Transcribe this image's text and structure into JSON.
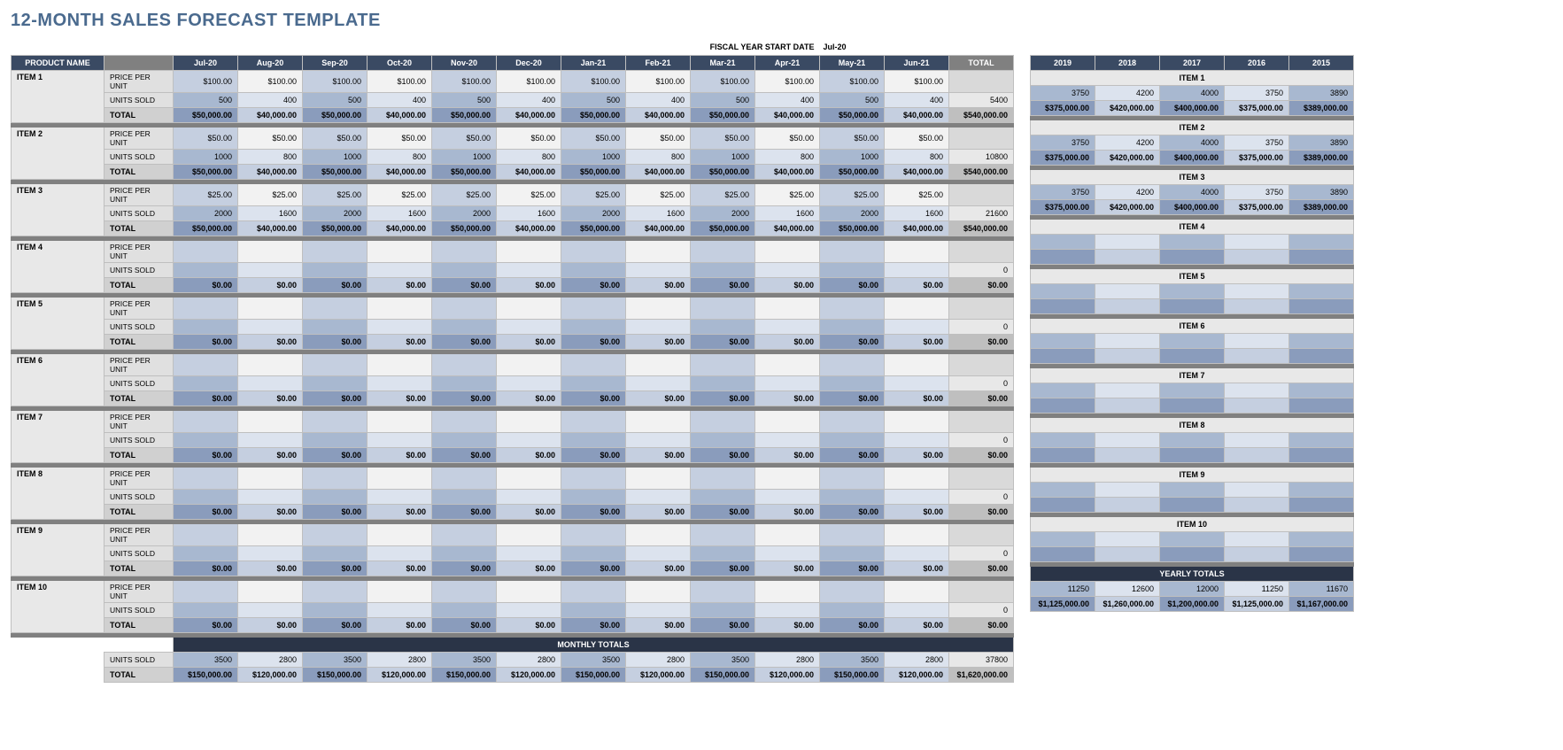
{
  "title": "12-MONTH SALES FORECAST TEMPLATE",
  "fiscal_label": "FISCAL YEAR START DATE",
  "fiscal_value": "Jul-20",
  "headers": {
    "product_name": "PRODUCT NAME",
    "months": [
      "Jul-20",
      "Aug-20",
      "Sep-20",
      "Oct-20",
      "Nov-20",
      "Dec-20",
      "Jan-21",
      "Feb-21",
      "Mar-21",
      "Apr-21",
      "May-21",
      "Jun-21"
    ],
    "total": "TOTAL",
    "years": [
      "2019",
      "2018",
      "2017",
      "2016",
      "2015"
    ],
    "monthly_totals": "MONTHLY TOTALS",
    "yearly_totals": "YEARLY TOTALS"
  },
  "row_labels": {
    "ppu": "PRICE PER UNIT",
    "units": "UNITS SOLD",
    "total": "TOTAL"
  },
  "items": [
    {
      "name": "ITEM 1",
      "ppu": [
        "$100.00",
        "$100.00",
        "$100.00",
        "$100.00",
        "$100.00",
        "$100.00",
        "$100.00",
        "$100.00",
        "$100.00",
        "$100.00",
        "$100.00",
        "$100.00"
      ],
      "ppu_total": "",
      "units": [
        "500",
        "400",
        "500",
        "400",
        "500",
        "400",
        "500",
        "400",
        "500",
        "400",
        "500",
        "400"
      ],
      "units_total": "5400",
      "totals": [
        "$50,000.00",
        "$40,000.00",
        "$50,000.00",
        "$40,000.00",
        "$50,000.00",
        "$40,000.00",
        "$50,000.00",
        "$40,000.00",
        "$50,000.00",
        "$40,000.00",
        "$50,000.00",
        "$40,000.00"
      ],
      "grand_total": "$540,000.00",
      "yr_units": [
        "3750",
        "4200",
        "4000",
        "3750",
        "3890"
      ],
      "yr_totals": [
        "$375,000.00",
        "$420,000.00",
        "$400,000.00",
        "$375,000.00",
        "$389,000.00"
      ]
    },
    {
      "name": "ITEM 2",
      "ppu": [
        "$50.00",
        "$50.00",
        "$50.00",
        "$50.00",
        "$50.00",
        "$50.00",
        "$50.00",
        "$50.00",
        "$50.00",
        "$50.00",
        "$50.00",
        "$50.00"
      ],
      "ppu_total": "",
      "units": [
        "1000",
        "800",
        "1000",
        "800",
        "1000",
        "800",
        "1000",
        "800",
        "1000",
        "800",
        "1000",
        "800"
      ],
      "units_total": "10800",
      "totals": [
        "$50,000.00",
        "$40,000.00",
        "$50,000.00",
        "$40,000.00",
        "$50,000.00",
        "$40,000.00",
        "$50,000.00",
        "$40,000.00",
        "$50,000.00",
        "$40,000.00",
        "$50,000.00",
        "$40,000.00"
      ],
      "grand_total": "$540,000.00",
      "yr_units": [
        "3750",
        "4200",
        "4000",
        "3750",
        "3890"
      ],
      "yr_totals": [
        "$375,000.00",
        "$420,000.00",
        "$400,000.00",
        "$375,000.00",
        "$389,000.00"
      ]
    },
    {
      "name": "ITEM 3",
      "ppu": [
        "$25.00",
        "$25.00",
        "$25.00",
        "$25.00",
        "$25.00",
        "$25.00",
        "$25.00",
        "$25.00",
        "$25.00",
        "$25.00",
        "$25.00",
        "$25.00"
      ],
      "ppu_total": "",
      "units": [
        "2000",
        "1600",
        "2000",
        "1600",
        "2000",
        "1600",
        "2000",
        "1600",
        "2000",
        "1600",
        "2000",
        "1600"
      ],
      "units_total": "21600",
      "totals": [
        "$50,000.00",
        "$40,000.00",
        "$50,000.00",
        "$40,000.00",
        "$50,000.00",
        "$40,000.00",
        "$50,000.00",
        "$40,000.00",
        "$50,000.00",
        "$40,000.00",
        "$50,000.00",
        "$40,000.00"
      ],
      "grand_total": "$540,000.00",
      "yr_units": [
        "3750",
        "4200",
        "4000",
        "3750",
        "3890"
      ],
      "yr_totals": [
        "$375,000.00",
        "$420,000.00",
        "$400,000.00",
        "$375,000.00",
        "$389,000.00"
      ]
    },
    {
      "name": "ITEM 4",
      "ppu": [
        "",
        "",
        "",
        "",
        "",
        "",
        "",
        "",
        "",
        "",
        "",
        ""
      ],
      "ppu_total": "",
      "units": [
        "",
        "",
        "",
        "",
        "",
        "",
        "",
        "",
        "",
        "",
        "",
        ""
      ],
      "units_total": "0",
      "totals": [
        "$0.00",
        "$0.00",
        "$0.00",
        "$0.00",
        "$0.00",
        "$0.00",
        "$0.00",
        "$0.00",
        "$0.00",
        "$0.00",
        "$0.00",
        "$0.00"
      ],
      "grand_total": "$0.00",
      "yr_units": [
        "",
        "",
        "",
        "",
        ""
      ],
      "yr_totals": [
        "",
        "",
        "",
        "",
        ""
      ]
    },
    {
      "name": "ITEM 5",
      "ppu": [
        "",
        "",
        "",
        "",
        "",
        "",
        "",
        "",
        "",
        "",
        "",
        ""
      ],
      "ppu_total": "",
      "units": [
        "",
        "",
        "",
        "",
        "",
        "",
        "",
        "",
        "",
        "",
        "",
        ""
      ],
      "units_total": "0",
      "totals": [
        "$0.00",
        "$0.00",
        "$0.00",
        "$0.00",
        "$0.00",
        "$0.00",
        "$0.00",
        "$0.00",
        "$0.00",
        "$0.00",
        "$0.00",
        "$0.00"
      ],
      "grand_total": "$0.00",
      "yr_units": [
        "",
        "",
        "",
        "",
        ""
      ],
      "yr_totals": [
        "",
        "",
        "",
        "",
        ""
      ]
    },
    {
      "name": "ITEM 6",
      "ppu": [
        "",
        "",
        "",
        "",
        "",
        "",
        "",
        "",
        "",
        "",
        "",
        ""
      ],
      "ppu_total": "",
      "units": [
        "",
        "",
        "",
        "",
        "",
        "",
        "",
        "",
        "",
        "",
        "",
        ""
      ],
      "units_total": "0",
      "totals": [
        "$0.00",
        "$0.00",
        "$0.00",
        "$0.00",
        "$0.00",
        "$0.00",
        "$0.00",
        "$0.00",
        "$0.00",
        "$0.00",
        "$0.00",
        "$0.00"
      ],
      "grand_total": "$0.00",
      "yr_units": [
        "",
        "",
        "",
        "",
        ""
      ],
      "yr_totals": [
        "",
        "",
        "",
        "",
        ""
      ]
    },
    {
      "name": "ITEM 7",
      "ppu": [
        "",
        "",
        "",
        "",
        "",
        "",
        "",
        "",
        "",
        "",
        "",
        ""
      ],
      "ppu_total": "",
      "units": [
        "",
        "",
        "",
        "",
        "",
        "",
        "",
        "",
        "",
        "",
        "",
        ""
      ],
      "units_total": "0",
      "totals": [
        "$0.00",
        "$0.00",
        "$0.00",
        "$0.00",
        "$0.00",
        "$0.00",
        "$0.00",
        "$0.00",
        "$0.00",
        "$0.00",
        "$0.00",
        "$0.00"
      ],
      "grand_total": "$0.00",
      "yr_units": [
        "",
        "",
        "",
        "",
        ""
      ],
      "yr_totals": [
        "",
        "",
        "",
        "",
        ""
      ]
    },
    {
      "name": "ITEM 8",
      "ppu": [
        "",
        "",
        "",
        "",
        "",
        "",
        "",
        "",
        "",
        "",
        "",
        ""
      ],
      "ppu_total": "",
      "units": [
        "",
        "",
        "",
        "",
        "",
        "",
        "",
        "",
        "",
        "",
        "",
        ""
      ],
      "units_total": "0",
      "totals": [
        "$0.00",
        "$0.00",
        "$0.00",
        "$0.00",
        "$0.00",
        "$0.00",
        "$0.00",
        "$0.00",
        "$0.00",
        "$0.00",
        "$0.00",
        "$0.00"
      ],
      "grand_total": "$0.00",
      "yr_units": [
        "",
        "",
        "",
        "",
        ""
      ],
      "yr_totals": [
        "",
        "",
        "",
        "",
        ""
      ]
    },
    {
      "name": "ITEM 9",
      "ppu": [
        "",
        "",
        "",
        "",
        "",
        "",
        "",
        "",
        "",
        "",
        "",
        ""
      ],
      "ppu_total": "",
      "units": [
        "",
        "",
        "",
        "",
        "",
        "",
        "",
        "",
        "",
        "",
        "",
        ""
      ],
      "units_total": "0",
      "totals": [
        "$0.00",
        "$0.00",
        "$0.00",
        "$0.00",
        "$0.00",
        "$0.00",
        "$0.00",
        "$0.00",
        "$0.00",
        "$0.00",
        "$0.00",
        "$0.00"
      ],
      "grand_total": "$0.00",
      "yr_units": [
        "",
        "",
        "",
        "",
        ""
      ],
      "yr_totals": [
        "",
        "",
        "",
        "",
        ""
      ]
    },
    {
      "name": "ITEM 10",
      "ppu": [
        "",
        "",
        "",
        "",
        "",
        "",
        "",
        "",
        "",
        "",
        "",
        ""
      ],
      "ppu_total": "",
      "units": [
        "",
        "",
        "",
        "",
        "",
        "",
        "",
        "",
        "",
        "",
        "",
        ""
      ],
      "units_total": "0",
      "totals": [
        "$0.00",
        "$0.00",
        "$0.00",
        "$0.00",
        "$0.00",
        "$0.00",
        "$0.00",
        "$0.00",
        "$0.00",
        "$0.00",
        "$0.00",
        "$0.00"
      ],
      "grand_total": "$0.00",
      "yr_units": [
        "",
        "",
        "",
        "",
        ""
      ],
      "yr_totals": [
        "",
        "",
        "",
        "",
        ""
      ]
    }
  ],
  "monthly_totals": {
    "units": [
      "3500",
      "2800",
      "3500",
      "2800",
      "3500",
      "2800",
      "3500",
      "2800",
      "3500",
      "2800",
      "3500",
      "2800"
    ],
    "units_total": "37800",
    "totals": [
      "$150,000.00",
      "$120,000.00",
      "$150,000.00",
      "$120,000.00",
      "$150,000.00",
      "$120,000.00",
      "$150,000.00",
      "$120,000.00",
      "$150,000.00",
      "$120,000.00",
      "$150,000.00",
      "$120,000.00"
    ],
    "grand_total": "$1,620,000.00"
  },
  "yearly_totals": {
    "units": [
      "11250",
      "12600",
      "12000",
      "11250",
      "11670"
    ],
    "totals": [
      "$1,125,000.00",
      "$1,260,000.00",
      "$1,200,000.00",
      "$1,125,000.00",
      "$1,167,000.00"
    ]
  },
  "colors": {
    "header_dark": "#3a4a63",
    "header_gray": "#808080",
    "alt_light_odd": "#c5cfe0",
    "alt_light_even": "#f2f2f2",
    "alt_mid_odd": "#a8b8d0",
    "alt_mid_even": "#dce3ee",
    "alt_dark_odd": "#8a9cbc",
    "alt_dark_even": "#c5cfe0",
    "totals_hdr": "#2a3447"
  }
}
